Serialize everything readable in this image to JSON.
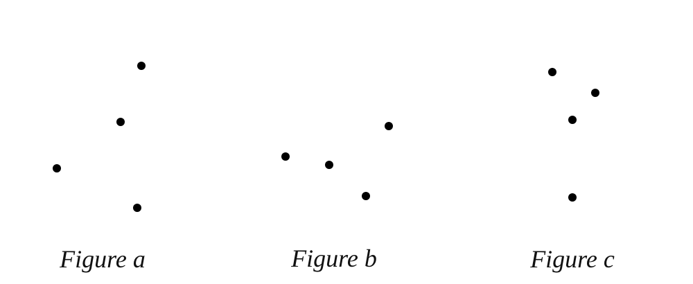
{
  "figures": [
    {
      "id": "a",
      "caption": "Figure a",
      "point_count": 4
    },
    {
      "id": "b",
      "caption": "Figure b",
      "point_count": 4
    },
    {
      "id": "c",
      "caption": "Figure c",
      "point_count": 4
    }
  ],
  "colors": {
    "dot": "#000000",
    "caption": "#111111",
    "background": "#ffffff"
  }
}
